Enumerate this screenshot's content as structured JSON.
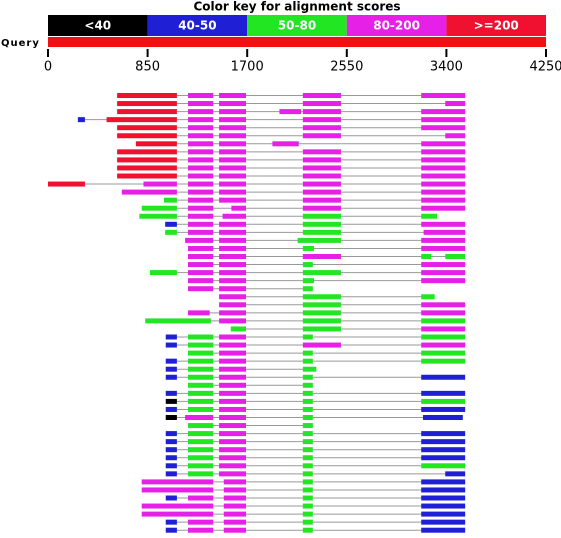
{
  "chart_data": {
    "type": "alignment",
    "title": "Color key for alignment scores",
    "key": [
      {
        "label": "<40",
        "color": "#000000"
      },
      {
        "label": "40-50",
        "color": "#1f1fd6"
      },
      {
        "label": "50-80",
        "color": "#22e622"
      },
      {
        "label": "80-200",
        "color": "#e620e6"
      },
      {
        "label": ">=200",
        "color": "#f01030"
      }
    ],
    "query_label": "Query",
    "query_color": "#f01010",
    "xlim": [
      0,
      4250
    ],
    "xticks": [
      0,
      850,
      1700,
      2550,
      3400,
      4250
    ],
    "hits": [
      [
        [
          590,
          1100,
          4
        ],
        [
          1195,
          1410,
          3
        ],
        [
          1460,
          1690,
          3
        ],
        [
          2175,
          2500,
          3
        ],
        [
          3185,
          3560,
          3
        ]
      ],
      [
        [
          590,
          1100,
          4
        ],
        [
          1195,
          1410,
          3
        ],
        [
          1460,
          1690,
          3
        ],
        [
          2175,
          2500,
          3
        ],
        [
          3390,
          3560,
          3
        ]
      ],
      [
        [
          590,
          1100,
          4
        ],
        [
          1195,
          1410,
          3
        ],
        [
          1460,
          1690,
          3
        ],
        [
          1975,
          2160,
          3
        ],
        [
          2175,
          2500,
          3
        ],
        [
          3185,
          3560,
          3
        ]
      ],
      [
        [
          255,
          315,
          1
        ],
        [
          500,
          1100,
          4
        ],
        [
          1195,
          1410,
          3
        ],
        [
          1460,
          1690,
          3
        ],
        [
          2175,
          2500,
          3
        ],
        [
          3185,
          3560,
          3
        ]
      ],
      [
        [
          590,
          1100,
          4
        ],
        [
          1195,
          1410,
          3
        ],
        [
          1460,
          1690,
          3
        ],
        [
          2175,
          2500,
          3
        ],
        [
          3185,
          3560,
          3
        ]
      ],
      [
        [
          590,
          1100,
          4
        ],
        [
          1195,
          1410,
          3
        ],
        [
          1460,
          1690,
          3
        ],
        [
          2175,
          2500,
          3
        ],
        [
          3390,
          3560,
          3
        ]
      ],
      [
        [
          750,
          1100,
          4
        ],
        [
          1195,
          1410,
          3
        ],
        [
          1460,
          1690,
          3
        ],
        [
          1915,
          2140,
          3
        ],
        [
          3185,
          3560,
          3
        ]
      ],
      [
        [
          590,
          1100,
          4
        ],
        [
          1195,
          1410,
          3
        ],
        [
          1460,
          1690,
          3
        ],
        [
          2175,
          2500,
          3
        ],
        [
          3185,
          3560,
          3
        ]
      ],
      [
        [
          590,
          1100,
          4
        ],
        [
          1195,
          1410,
          3
        ],
        [
          1460,
          1690,
          3
        ],
        [
          2175,
          2500,
          3
        ],
        [
          3185,
          3560,
          3
        ]
      ],
      [
        [
          590,
          1100,
          4
        ],
        [
          1195,
          1410,
          3
        ],
        [
          1460,
          1690,
          3
        ],
        [
          2175,
          2500,
          3
        ],
        [
          3185,
          3560,
          3
        ]
      ],
      [
        [
          590,
          1100,
          4
        ],
        [
          1195,
          1410,
          3
        ],
        [
          1460,
          1690,
          3
        ],
        [
          2175,
          2500,
          3
        ],
        [
          3185,
          3560,
          3
        ]
      ],
      [
        [
          0,
          315,
          4
        ],
        [
          815,
          1100,
          3
        ],
        [
          1195,
          1410,
          3
        ],
        [
          1460,
          1690,
          3
        ],
        [
          2175,
          2500,
          3
        ],
        [
          3185,
          3560,
          3
        ]
      ],
      [
        [
          630,
          1100,
          3
        ],
        [
          1195,
          1410,
          3
        ],
        [
          1460,
          1690,
          3
        ],
        [
          2175,
          2500,
          3
        ],
        [
          3185,
          3560,
          3
        ]
      ],
      [
        [
          990,
          1100,
          2
        ],
        [
          1195,
          1410,
          3
        ],
        [
          1460,
          1690,
          3
        ],
        [
          2175,
          2500,
          3
        ],
        [
          3185,
          3560,
          3
        ]
      ],
      [
        [
          800,
          1100,
          2
        ],
        [
          1195,
          1410,
          3
        ],
        [
          1565,
          1690,
          3
        ],
        [
          2175,
          2500,
          3
        ],
        [
          3185,
          3560,
          3
        ]
      ],
      [
        [
          780,
          1100,
          2
        ],
        [
          1195,
          1410,
          3
        ],
        [
          1490,
          1690,
          3
        ],
        [
          2175,
          2500,
          2
        ],
        [
          3185,
          3320,
          2
        ]
      ],
      [
        [
          1000,
          1100,
          1
        ],
        [
          1195,
          1410,
          3
        ],
        [
          1460,
          1690,
          3
        ],
        [
          2175,
          2500,
          2
        ],
        [
          3185,
          3560,
          3
        ]
      ],
      [
        [
          1000,
          1100,
          2
        ],
        [
          1195,
          1410,
          3
        ],
        [
          1460,
          1690,
          3
        ],
        [
          2175,
          2500,
          2
        ],
        [
          3205,
          3560,
          3
        ]
      ],
      [
        [
          1170,
          1410,
          3
        ],
        [
          1460,
          1690,
          3
        ],
        [
          2130,
          2500,
          2
        ],
        [
          3185,
          3560,
          3
        ]
      ],
      [
        [
          1195,
          1410,
          3
        ],
        [
          1460,
          1690,
          3
        ],
        [
          2175,
          2270,
          2
        ],
        [
          3185,
          3560,
          3
        ]
      ],
      [
        [
          1195,
          1410,
          3
        ],
        [
          1460,
          1690,
          3
        ],
        [
          2175,
          2500,
          3
        ],
        [
          3185,
          3270,
          2
        ],
        [
          3390,
          3560,
          2
        ]
      ],
      [
        [
          1195,
          1410,
          3
        ],
        [
          1460,
          1690,
          3
        ],
        [
          2175,
          2260,
          2
        ],
        [
          3185,
          3560,
          3
        ]
      ],
      [
        [
          870,
          1100,
          2
        ],
        [
          1195,
          1410,
          3
        ],
        [
          1460,
          1690,
          3
        ],
        [
          2175,
          2500,
          2
        ],
        [
          3185,
          3560,
          3
        ]
      ],
      [
        [
          1195,
          1410,
          3
        ],
        [
          1460,
          1690,
          3
        ],
        [
          2175,
          2270,
          2
        ],
        [
          3185,
          3560,
          3
        ]
      ],
      [
        [
          1195,
          1410,
          3
        ],
        [
          1460,
          1690,
          3
        ],
        [
          2175,
          2260,
          2
        ]
      ],
      [
        [
          1460,
          1690,
          3
        ],
        [
          2175,
          2500,
          2
        ],
        [
          3185,
          3300,
          2
        ]
      ],
      [
        [
          1460,
          1690,
          3
        ],
        [
          2175,
          2500,
          2
        ],
        [
          3185,
          3560,
          3
        ]
      ],
      [
        [
          1195,
          1380,
          3
        ],
        [
          1460,
          1690,
          3
        ],
        [
          2175,
          2500,
          2
        ],
        [
          3185,
          3560,
          3
        ]
      ],
      [
        [
          830,
          1390,
          2
        ],
        [
          1460,
          1690,
          3
        ],
        [
          2175,
          2500,
          2
        ],
        [
          3185,
          3560,
          2
        ]
      ],
      [
        [
          1560,
          1690,
          2
        ],
        [
          2175,
          2500,
          2
        ],
        [
          3185,
          3560,
          3
        ]
      ],
      [
        [
          1005,
          1100,
          1
        ],
        [
          1195,
          1410,
          2
        ],
        [
          1460,
          1690,
          3
        ],
        [
          2175,
          2260,
          2
        ],
        [
          3185,
          3560,
          2
        ]
      ],
      [
        [
          1005,
          1100,
          1
        ],
        [
          1195,
          1410,
          2
        ],
        [
          1460,
          1690,
          3
        ],
        [
          2175,
          2500,
          3
        ],
        [
          3185,
          3560,
          3
        ]
      ],
      [
        [
          1195,
          1410,
          2
        ],
        [
          1460,
          1690,
          3
        ],
        [
          2175,
          2260,
          2
        ],
        [
          3185,
          3560,
          2
        ]
      ],
      [
        [
          1005,
          1100,
          1
        ],
        [
          1195,
          1410,
          2
        ],
        [
          1460,
          1690,
          3
        ],
        [
          2175,
          2260,
          2
        ],
        [
          3185,
          3560,
          2
        ]
      ],
      [
        [
          1005,
          1100,
          1
        ],
        [
          1195,
          1410,
          2
        ],
        [
          1460,
          1690,
          3
        ],
        [
          2175,
          2290,
          2
        ]
      ],
      [
        [
          1005,
          1100,
          1
        ],
        [
          1195,
          1410,
          2
        ],
        [
          1460,
          1690,
          3
        ],
        [
          2175,
          2260,
          2
        ],
        [
          3185,
          3560,
          1
        ]
      ],
      [
        [
          1195,
          1410,
          2
        ],
        [
          1460,
          1690,
          3
        ],
        [
          2175,
          2260,
          2
        ]
      ],
      [
        [
          1005,
          1100,
          1
        ],
        [
          1195,
          1410,
          2
        ],
        [
          1460,
          1690,
          3
        ],
        [
          2175,
          2260,
          2
        ],
        [
          3185,
          3560,
          1
        ]
      ],
      [
        [
          1005,
          1100,
          0
        ],
        [
          1195,
          1410,
          2
        ],
        [
          1460,
          1690,
          3
        ],
        [
          2175,
          2260,
          2
        ],
        [
          3185,
          3560,
          2
        ]
      ],
      [
        [
          1005,
          1100,
          1
        ],
        [
          1195,
          1410,
          2
        ],
        [
          1460,
          1690,
          3
        ],
        [
          2175,
          2260,
          2
        ],
        [
          3185,
          3560,
          1
        ]
      ],
      [
        [
          1005,
          1100,
          0
        ],
        [
          1170,
          1410,
          3
        ],
        [
          1460,
          1690,
          3
        ],
        [
          2175,
          2260,
          2
        ],
        [
          3200,
          3540,
          1
        ]
      ],
      [
        [
          1195,
          1410,
          2
        ],
        [
          1460,
          1690,
          3
        ],
        [
          2175,
          2260,
          2
        ]
      ],
      [
        [
          1005,
          1100,
          1
        ],
        [
          1195,
          1410,
          2
        ],
        [
          1460,
          1690,
          3
        ],
        [
          2175,
          2260,
          2
        ],
        [
          3185,
          3560,
          1
        ]
      ],
      [
        [
          1005,
          1100,
          1
        ],
        [
          1195,
          1410,
          2
        ],
        [
          1460,
          1690,
          3
        ],
        [
          2175,
          2260,
          2
        ],
        [
          3185,
          3560,
          1
        ]
      ],
      [
        [
          1005,
          1100,
          1
        ],
        [
          1195,
          1410,
          2
        ],
        [
          1460,
          1690,
          3
        ],
        [
          2175,
          2260,
          2
        ],
        [
          3185,
          3560,
          1
        ]
      ],
      [
        [
          1005,
          1100,
          1
        ],
        [
          1195,
          1410,
          2
        ],
        [
          1460,
          1690,
          3
        ],
        [
          2175,
          2260,
          2
        ],
        [
          3185,
          3560,
          1
        ]
      ],
      [
        [
          1005,
          1100,
          1
        ],
        [
          1195,
          1410,
          2
        ],
        [
          1460,
          1690,
          3
        ],
        [
          2175,
          2260,
          2
        ],
        [
          3185,
          3560,
          2
        ]
      ],
      [
        [
          1005,
          1100,
          1
        ],
        [
          1195,
          1410,
          2
        ],
        [
          1460,
          1690,
          3
        ],
        [
          2175,
          2260,
          2
        ],
        [
          3390,
          3560,
          1
        ]
      ],
      [
        [
          800,
          1410,
          3
        ],
        [
          1500,
          1690,
          3
        ],
        [
          2175,
          2260,
          2
        ],
        [
          3185,
          3560,
          1
        ]
      ],
      [
        [
          800,
          1410,
          3
        ],
        [
          1500,
          1690,
          3
        ],
        [
          2175,
          2260,
          2
        ],
        [
          3185,
          3560,
          1
        ]
      ],
      [
        [
          1005,
          1100,
          1
        ],
        [
          1195,
          1410,
          3
        ],
        [
          1500,
          1690,
          3
        ],
        [
          2175,
          2260,
          2
        ],
        [
          3185,
          3560,
          1
        ]
      ],
      [
        [
          800,
          1410,
          3
        ],
        [
          1500,
          1690,
          3
        ],
        [
          2175,
          2260,
          2
        ],
        [
          3185,
          3560,
          1
        ]
      ],
      [
        [
          800,
          1410,
          3
        ],
        [
          1500,
          1690,
          3
        ],
        [
          2175,
          2260,
          2
        ],
        [
          3185,
          3560,
          1
        ]
      ],
      [
        [
          1005,
          1100,
          1
        ],
        [
          1195,
          1410,
          3
        ],
        [
          1500,
          1690,
          3
        ],
        [
          2175,
          2260,
          2
        ],
        [
          3185,
          3560,
          1
        ]
      ],
      [
        [
          1005,
          1100,
          1
        ],
        [
          1195,
          1410,
          3
        ],
        [
          1500,
          1690,
          3
        ],
        [
          2175,
          2260,
          2
        ],
        [
          3185,
          3560,
          1
        ]
      ]
    ]
  }
}
